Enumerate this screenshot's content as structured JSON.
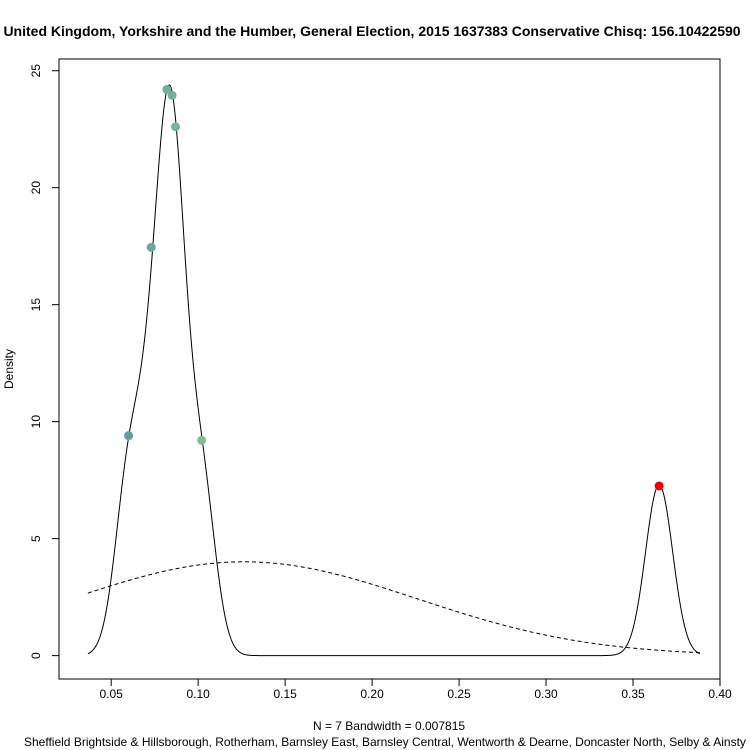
{
  "chart_data": {
    "type": "line",
    "title": "United Kingdom, Yorkshire and the Humber, General Election, 2015 1637383 Conservative Chisq: 156.10422590",
    "xlabel": "N = 7   Bandwidth = 0.007815",
    "footer": "Sheffield Brightside & Hillsborough, Rotherham, Barnsley East, Barnsley Central, Wentworth & Dearne, Doncaster North, Selby & Ainsty",
    "ylabel": "Density",
    "xlim": [
      0.02,
      0.4
    ],
    "ylim": [
      -1.0,
      25.5
    ],
    "x_ticks": [
      0.05,
      0.1,
      0.15,
      0.2,
      0.25,
      0.3,
      0.35,
      0.4
    ],
    "x_tick_labels": [
      "0.05",
      "0.10",
      "0.15",
      "0.20",
      "0.25",
      "0.30",
      "0.35",
      "0.40"
    ],
    "y_ticks": [
      0,
      5,
      10,
      15,
      20,
      25
    ],
    "y_tick_labels": [
      "0",
      "5",
      "10",
      "15",
      "20",
      "25"
    ],
    "kde": {
      "points": [
        0.06,
        0.073,
        0.082,
        0.085,
        0.087,
        0.102,
        0.365
      ],
      "bandwidth": 0.007815,
      "x_range": [
        0.0366,
        0.3884
      ],
      "style": "solid"
    },
    "normal_reference": {
      "mean": 0.1263,
      "sd": 0.0995,
      "x_range": [
        0.0366,
        0.3884
      ],
      "style": "dashed"
    },
    "points": [
      {
        "x": 0.06,
        "y": 9.4,
        "color": "#5f9ea0"
      },
      {
        "x": 0.073,
        "y": 17.45,
        "color": "#6aa8a0"
      },
      {
        "x": 0.082,
        "y": 24.2,
        "color": "#72b09a"
      },
      {
        "x": 0.085,
        "y": 23.95,
        "color": "#72b09a"
      },
      {
        "x": 0.087,
        "y": 22.6,
        "color": "#78b498"
      },
      {
        "x": 0.102,
        "y": 9.2,
        "color": "#86bb92"
      },
      {
        "x": 0.365,
        "y": 7.25,
        "color": "#ee0000"
      }
    ]
  }
}
